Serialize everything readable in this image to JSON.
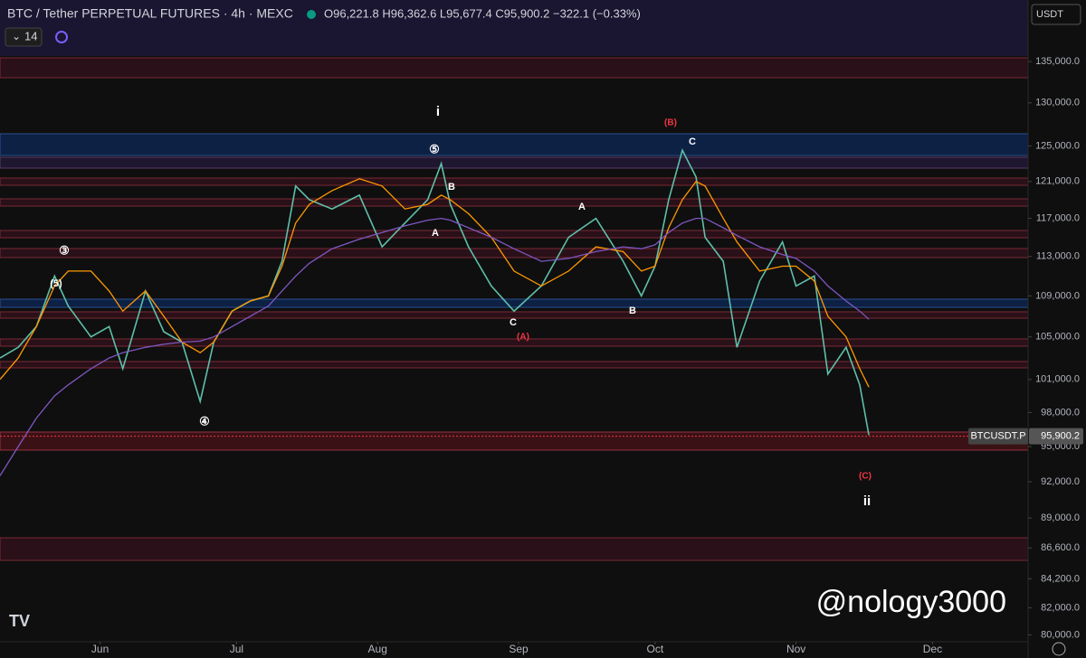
{
  "header": {
    "symbol": "BTC / Tether PERPETUAL FUTURES · 4h · MEXC",
    "ohlc": "O96,221.8 H96,362.6 L95,677.4 C95,900.2 −322.1 (−0.33%)",
    "indicator_count": "14",
    "currency": "USDT"
  },
  "chart_data": {
    "type": "line",
    "log": true,
    "x": [
      130,
      134,
      138,
      142,
      145,
      150,
      154,
      157,
      162,
      166,
      170,
      174,
      177,
      181,
      185,
      189,
      192,
      195,
      198,
      203,
      209,
      214,
      219,
      224,
      227,
      229,
      233,
      238,
      243,
      249,
      255,
      261,
      267,
      271,
      274,
      277,
      280,
      283,
      285,
      289,
      292,
      297,
      302,
      305,
      309,
      312,
      316,
      319,
      321
    ],
    "series": [
      {
        "color": "#5fbfa9",
        "values": [
          103000,
          104000,
          106000,
          111000,
          108000,
          105000,
          106000,
          102000,
          109500,
          105500,
          104500,
          99000,
          104500,
          107500,
          108500,
          109000,
          112500,
          120500,
          119000,
          118000,
          119500,
          114000,
          116500,
          119000,
          123000,
          118500,
          114000,
          110000,
          107500,
          110000,
          115000,
          117000,
          112500,
          109000,
          112000,
          119000,
          124500,
          121500,
          115000,
          112500,
          104000,
          110500,
          114500,
          110000,
          111000,
          101500,
          104000,
          100500,
          96000
        ]
      },
      {
        "color": "#ff9800",
        "values": [
          101000,
          103000,
          106000,
          110000,
          111500,
          111500,
          109500,
          107500,
          109500,
          107000,
          104500,
          103500,
          104500,
          107500,
          108500,
          109000,
          112000,
          116500,
          118500,
          120000,
          121300,
          120500,
          118000,
          118500,
          119500,
          119000,
          117500,
          115000,
          111500,
          110000,
          111500,
          114000,
          113500,
          111500,
          112000,
          116000,
          119000,
          121000,
          120500,
          117000,
          114500,
          111500,
          112000,
          112000,
          110500,
          107000,
          105000,
          102000,
          100300
        ]
      },
      {
        "color": "#7e57c2",
        "values": [
          92500,
          95000,
          97500,
          99500,
          100500,
          102000,
          103000,
          103500,
          104000,
          104300,
          104500,
          104600,
          105000,
          106000,
          107000,
          108000,
          109500,
          111000,
          112300,
          113800,
          114800,
          115500,
          116200,
          116800,
          117000,
          116800,
          116000,
          115000,
          113800,
          112500,
          112800,
          113500,
          114000,
          113800,
          114200,
          115500,
          116500,
          117000,
          117000,
          116000,
          115200,
          114000,
          113200,
          112800,
          111500,
          110000,
          108500,
          107500,
          106700
        ]
      }
    ],
    "xlim": [
      130,
      356
    ],
    "xticks": [
      {
        "value": 152,
        "label": "Jun"
      },
      {
        "value": 182,
        "label": "Jul"
      },
      {
        "value": 213,
        "label": "Aug"
      },
      {
        "value": 244,
        "label": "Sep"
      },
      {
        "value": 274,
        "label": "Oct"
      },
      {
        "value": 305,
        "label": "Nov"
      },
      {
        "value": 335,
        "label": "Dec"
      }
    ],
    "ylim": [
      79500,
      142800
    ],
    "yticks": [
      {
        "value": 135000,
        "label": "135,000.0"
      },
      {
        "value": 130000,
        "label": "130,000.0"
      },
      {
        "value": 125000,
        "label": "125,000.0"
      },
      {
        "value": 121000,
        "label": "121,000.0"
      },
      {
        "value": 117000,
        "label": "117,000.0"
      },
      {
        "value": 113000,
        "label": "113,000.0"
      },
      {
        "value": 109000,
        "label": "109,000.0"
      },
      {
        "value": 105000,
        "label": "105,000.0"
      },
      {
        "value": 101000,
        "label": "101,000.0"
      },
      {
        "value": 98000,
        "label": "98,000.0"
      },
      {
        "value": 95000,
        "label": "95,000.0"
      },
      {
        "value": 92000,
        "label": "92,000.0"
      },
      {
        "value": 89000,
        "label": "89,000.0"
      },
      {
        "value": 86600,
        "label": "86,600.0"
      },
      {
        "value": 84200,
        "label": "84,200.0"
      },
      {
        "value": 82000,
        "label": "82,000.0"
      },
      {
        "value": 80000,
        "label": "80,000.0"
      }
    ],
    "last_price": {
      "name": "BTCUSDT.P",
      "value": 95900.2,
      "value_label": "95,900.2"
    },
    "annotations": [
      {
        "text": "i",
        "color": "#ffffff"
      },
      {
        "text": "⑤",
        "color": "#ffffff"
      },
      {
        "text": "B",
        "color": "#ffffff"
      },
      {
        "text": "A",
        "color": "#ffffff"
      },
      {
        "text": "A",
        "color": "#ffffff"
      },
      {
        "text": "C",
        "color": "#ffffff"
      },
      {
        "text": "B",
        "color": "#ffffff"
      },
      {
        "text": "(A)",
        "color": "#f23645"
      },
      {
        "text": "(B)",
        "color": "#f23645"
      },
      {
        "text": "C",
        "color": "#ffffff"
      },
      {
        "text": "③",
        "color": "#ffffff"
      },
      {
        "text": "(5)",
        "color": "#ffffff"
      },
      {
        "text": "④",
        "color": "#ffffff"
      },
      {
        "text": "(C)",
        "color": "#f23645"
      },
      {
        "text": "ii",
        "color": "#ffffff"
      }
    ],
    "watermark": "@nology3000"
  }
}
